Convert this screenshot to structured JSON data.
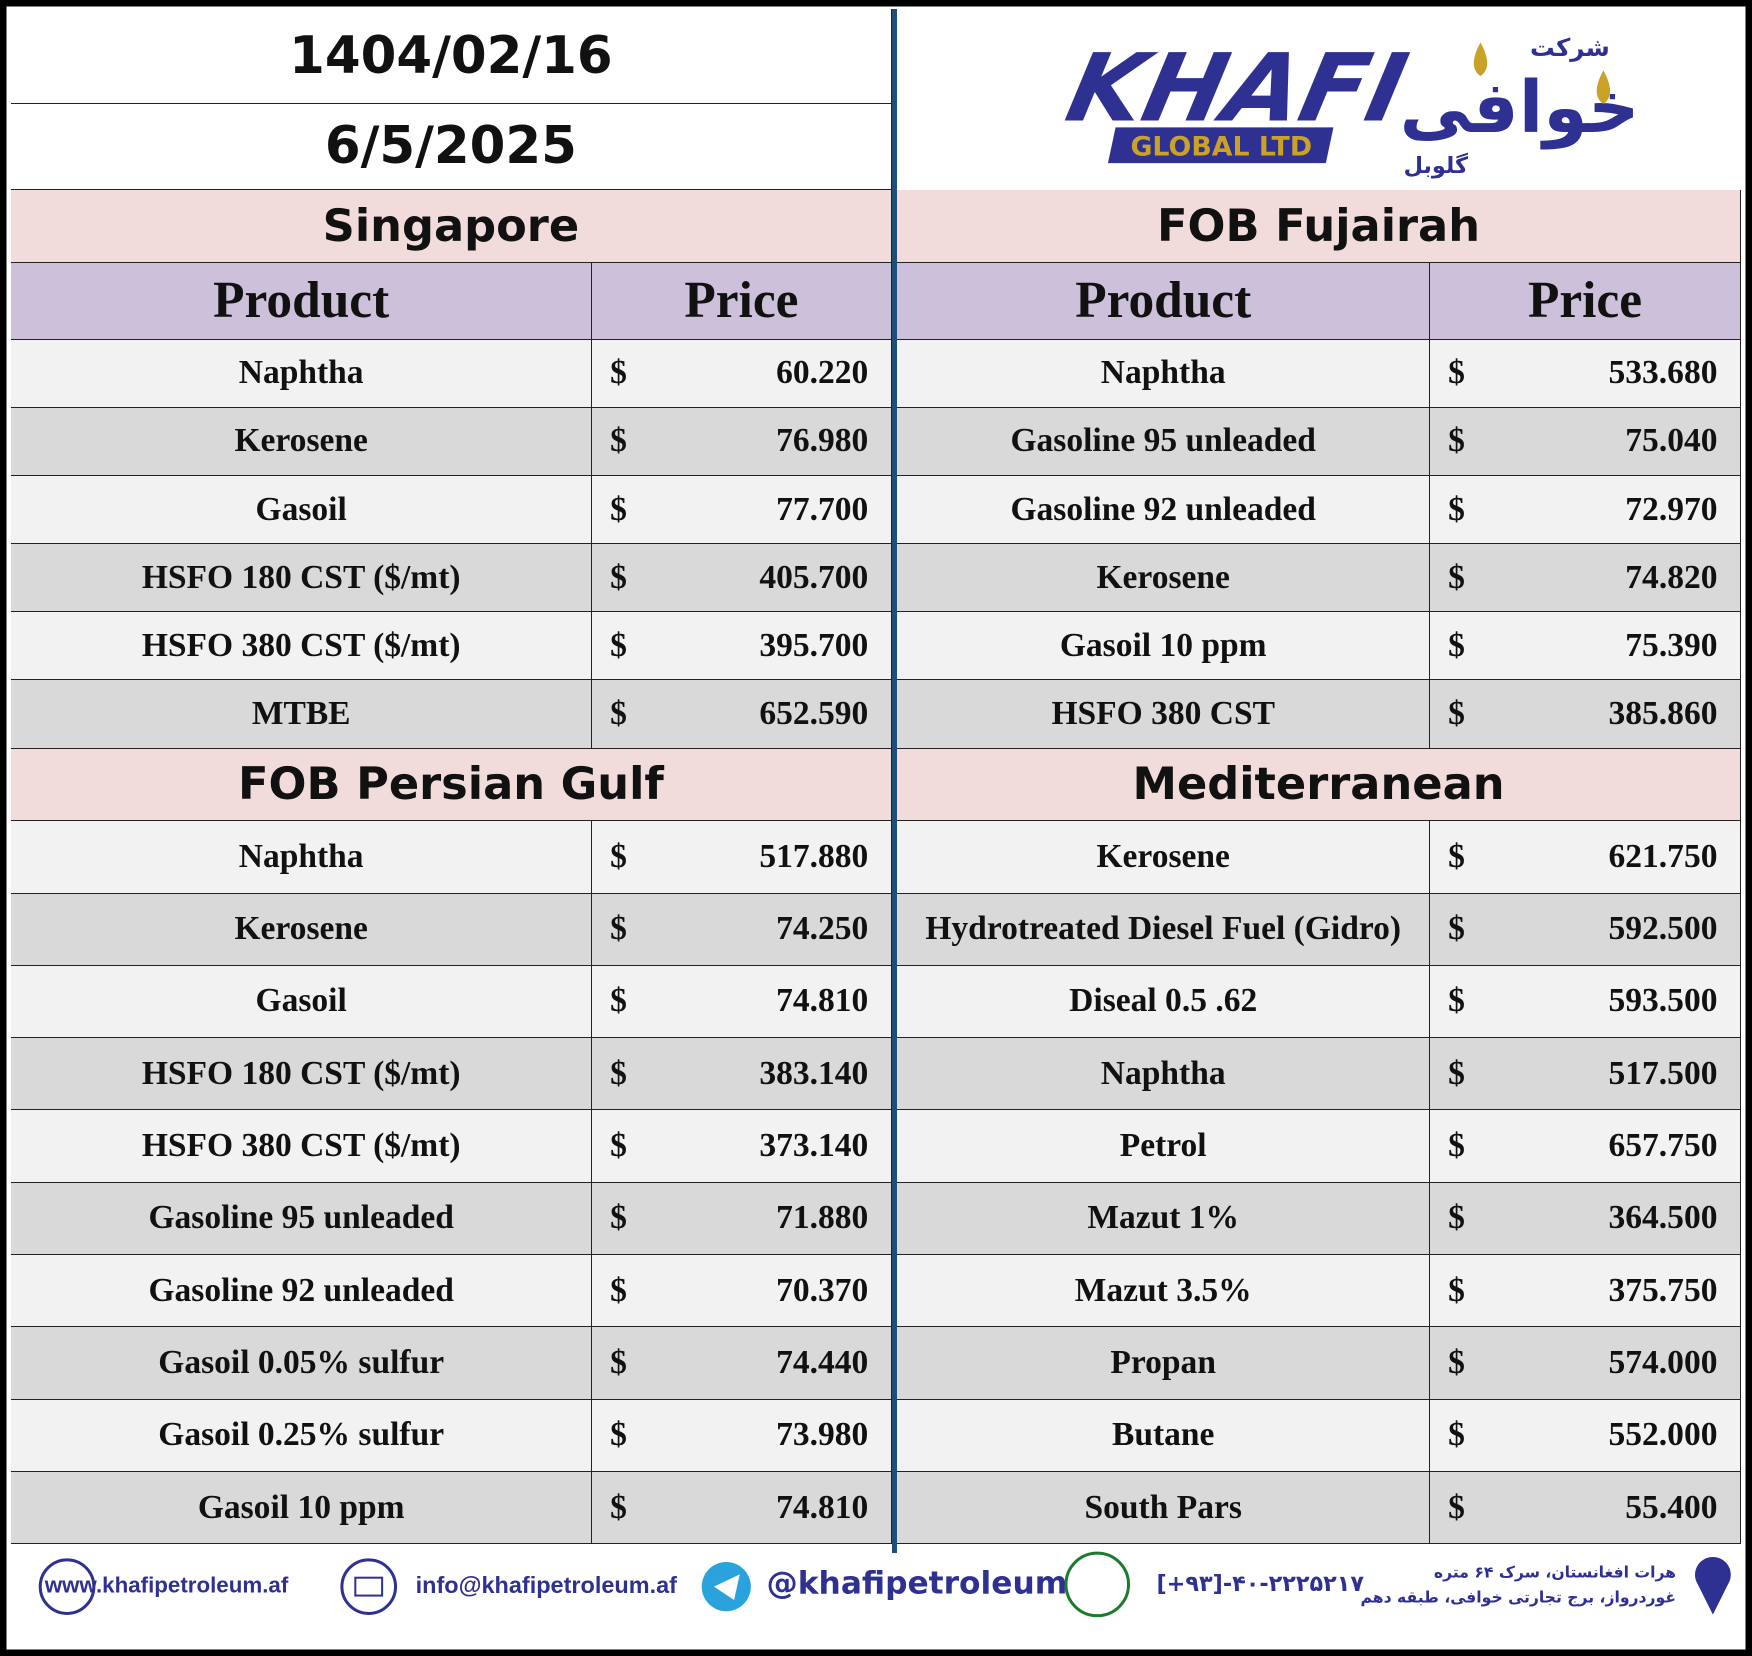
{
  "header": {
    "date_shamsi": "1404/02/16",
    "date_gregorian": "6/5/2025",
    "logo": {
      "name": "KHAFI",
      "subtitle": "GLOBAL LTD",
      "persian_prefix": "شرکت",
      "persian_name": "خوافی",
      "persian_suffix": "گلوبل"
    }
  },
  "currency": "$",
  "columns": {
    "product": "Product",
    "price": "Price"
  },
  "sections": [
    {
      "title": "Singapore",
      "rows": [
        [
          "Naphtha",
          "60.220"
        ],
        [
          "Kerosene",
          "76.980"
        ],
        [
          "Gasoil",
          "77.700"
        ],
        [
          "HSFO 180 CST ($/mt)",
          "405.700"
        ],
        [
          "HSFO 380 CST ($/mt)",
          "395.700"
        ],
        [
          "MTBE",
          "652.590"
        ]
      ]
    },
    {
      "title": "FOB Fujairah",
      "rows": [
        [
          "Naphtha",
          "533.680"
        ],
        [
          "Gasoline 95 unleaded",
          "75.040"
        ],
        [
          "Gasoline 92 unleaded",
          "72.970"
        ],
        [
          "Kerosene",
          "74.820"
        ],
        [
          "Gasoil 10 ppm",
          "75.390"
        ],
        [
          "HSFO 380 CST",
          "385.860"
        ]
      ]
    },
    {
      "title": "FOB Persian Gulf",
      "rows": [
        [
          "Naphtha",
          "517.880"
        ],
        [
          "Kerosene",
          "74.250"
        ],
        [
          "Gasoil",
          "74.810"
        ],
        [
          "HSFO 180 CST ($/mt)",
          "383.140"
        ],
        [
          "HSFO 380 CST ($/mt)",
          "373.140"
        ],
        [
          "Gasoline 95 unleaded",
          "71.880"
        ],
        [
          "Gasoline 92 unleaded",
          "70.370"
        ],
        [
          "Gasoil 0.05% sulfur",
          "74.440"
        ],
        [
          "Gasoil 0.25% sulfur",
          "73.980"
        ],
        [
          "Gasoil 10 ppm",
          "74.810"
        ]
      ]
    },
    {
      "title": "Mediterranean",
      "rows": [
        [
          "Kerosene",
          "621.750"
        ],
        [
          "Hydrotreated Diesel Fuel (Gidro)",
          "592.500"
        ],
        [
          "Diseal 0.5 .62",
          "593.500"
        ],
        [
          "Naphtha",
          "517.500"
        ],
        [
          "Petrol",
          "657.750"
        ],
        [
          "Mazut 1%",
          "364.500"
        ],
        [
          "Mazut 3.5%",
          "375.750"
        ],
        [
          "Propan",
          "574.000"
        ],
        [
          "Butane",
          "552.000"
        ],
        [
          "South Pars",
          "55.400"
        ]
      ]
    }
  ],
  "footer": {
    "website": "www.khafipetroleum.af",
    "email": "info@khafipetroleum.af",
    "telegram": "@khafipetroleum",
    "phone": "[+۹۳]-۴۰-۲۲۲۵۲۱۷",
    "address_line1": "هرات افغانستان، سرک ۶۴ متره",
    "address_line2": "غوردرواز، برج تجارتی خوافی، طبقه دهم"
  }
}
